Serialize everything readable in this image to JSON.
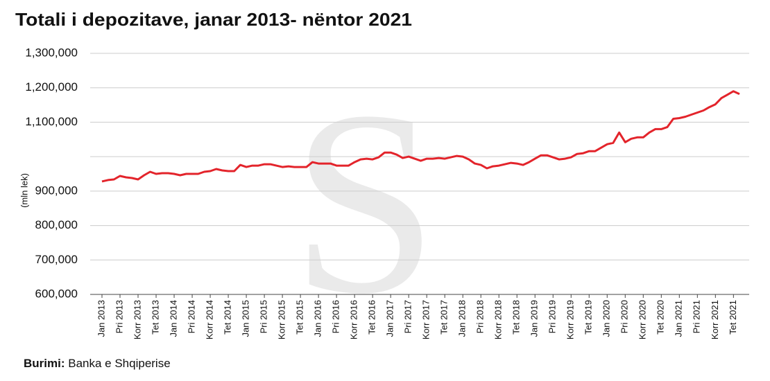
{
  "chart_data": {
    "type": "line",
    "title": "Totali i depozitave, janar 2013- nëntor 2021",
    "y_label": "(mln lek)",
    "source_label": "Burimi:",
    "source": "Banka e Shqiperise",
    "categories": [
      "Jan 2013",
      null,
      null,
      "Pri 2013",
      null,
      null,
      "Korr 2013",
      null,
      null,
      "Tet 2013",
      null,
      null,
      "Jan 2014",
      null,
      null,
      "Pri 2014",
      null,
      null,
      "Korr 2014",
      null,
      null,
      "Tet 2014",
      null,
      null,
      "Jan 2015",
      null,
      null,
      "Pri 2015",
      null,
      null,
      "Korr 2015",
      null,
      null,
      "Tet 2015",
      null,
      null,
      "Jan 2016",
      null,
      null,
      "Pri 2016",
      null,
      null,
      "Korr 2016",
      null,
      null,
      "Tet 2016",
      null,
      null,
      "Jan 2017",
      null,
      null,
      "Pri 2017",
      null,
      null,
      "Korr 2017",
      null,
      null,
      "Tet 2017",
      null,
      null,
      "Jan 2018",
      null,
      null,
      "Pri 2018",
      null,
      null,
      "Korr 2018",
      null,
      null,
      "Tet 2018",
      null,
      null,
      "Jan 2019",
      null,
      null,
      "Pri 2019",
      null,
      null,
      "Korr 2019",
      null,
      null,
      "Tet 2019",
      null,
      null,
      "Jan 2020",
      null,
      null,
      "Pri 2020",
      null,
      null,
      "Korr 2020",
      null,
      null,
      "Tet 2020",
      null,
      null,
      "Jan 2021",
      null,
      null,
      "Pri 2021",
      null,
      null,
      "Korr 2021",
      null,
      null,
      "Tet 2021",
      null
    ],
    "series": [
      {
        "name": "Totali i depozitave",
        "color": "#e3242b",
        "values": [
          928000,
          932000,
          934000,
          944000,
          940000,
          938000,
          934000,
          946000,
          956000,
          950000,
          952000,
          952000,
          950000,
          946000,
          950000,
          950000,
          950000,
          956000,
          958000,
          964000,
          960000,
          958000,
          958000,
          976000,
          970000,
          974000,
          974000,
          978000,
          978000,
          974000,
          970000,
          972000,
          970000,
          970000,
          970000,
          984000,
          980000,
          980000,
          980000,
          974000,
          974000,
          974000,
          984000,
          992000,
          994000,
          992000,
          998000,
          1012000,
          1012000,
          1006000,
          996000,
          1000000,
          994000,
          988000,
          994000,
          994000,
          996000,
          994000,
          998000,
          1002000,
          1000000,
          992000,
          980000,
          976000,
          966000,
          972000,
          974000,
          978000,
          982000,
          980000,
          976000,
          984000,
          994000,
          1004000,
          1004000,
          998000,
          992000,
          994000,
          998000,
          1008000,
          1010000,
          1016000,
          1016000,
          1026000,
          1036000,
          1040000,
          1070000,
          1042000,
          1052000,
          1056000,
          1056000,
          1070000,
          1080000,
          1080000,
          1086000,
          1110000,
          1112000,
          1116000,
          1122000,
          1128000,
          1134000,
          1144000,
          1152000,
          1170000,
          1180000,
          1190000,
          1182000
        ]
      }
    ],
    "ylim": [
      600000,
      1300000
    ],
    "yticks": [
      {
        "value": 600000,
        "label": "600,000"
      },
      {
        "value": 700000,
        "label": "700,000"
      },
      {
        "value": 800000,
        "label": "800,000"
      },
      {
        "value": 900000,
        "label": "900,000"
      },
      {
        "value": 1000000,
        "label": null
      },
      {
        "value": 1100000,
        "label": "1,100,000"
      },
      {
        "value": 1200000,
        "label": "1,200,000"
      },
      {
        "value": 1300000,
        "label": "1,300,000"
      }
    ],
    "grid": true
  }
}
